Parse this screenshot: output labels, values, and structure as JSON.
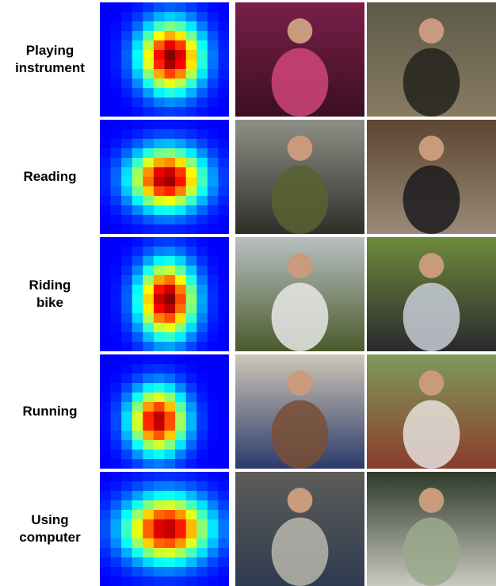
{
  "rows": [
    {
      "label_lines": [
        "Playing",
        "instrument"
      ]
    },
    {
      "label_lines": [
        "Reading"
      ]
    },
    {
      "label_lines": [
        "Riding",
        "bike"
      ]
    },
    {
      "label_lines": [
        "Running"
      ]
    },
    {
      "label_lines": [
        "Using",
        "computer"
      ]
    }
  ]
}
